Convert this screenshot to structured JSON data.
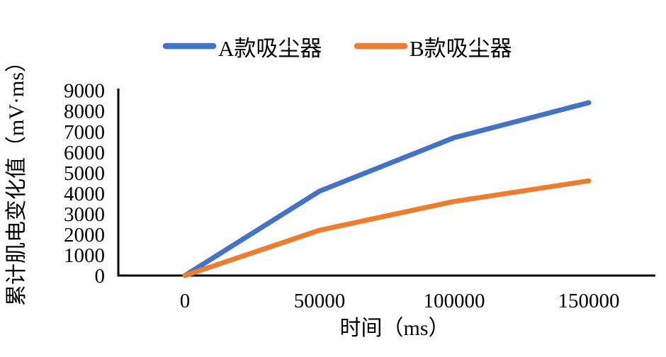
{
  "chart_data": {
    "type": "line",
    "x": [
      0,
      50000,
      100000,
      150000
    ],
    "x_tick_labels": [
      "0",
      "50000",
      "100000",
      "150000"
    ],
    "y_ticks": [
      0,
      1000,
      2000,
      3000,
      4000,
      5000,
      6000,
      7000,
      8000,
      9000
    ],
    "ylim": [
      0,
      9000
    ],
    "series": [
      {
        "name": "A款吸尘器",
        "color": "#4472C4",
        "values": [
          0,
          4100,
          6700,
          8400
        ]
      },
      {
        "name": "B款吸尘器",
        "color": "#ED7D31",
        "values": [
          0,
          2200,
          3600,
          4600
        ]
      }
    ],
    "xlabel": "时间（ms）",
    "ylabel": "累计肌电变化值（mV·ms）",
    "grid": "off",
    "legend_position": "top",
    "axis_color": "#000000",
    "background": "#FFFFFF"
  }
}
